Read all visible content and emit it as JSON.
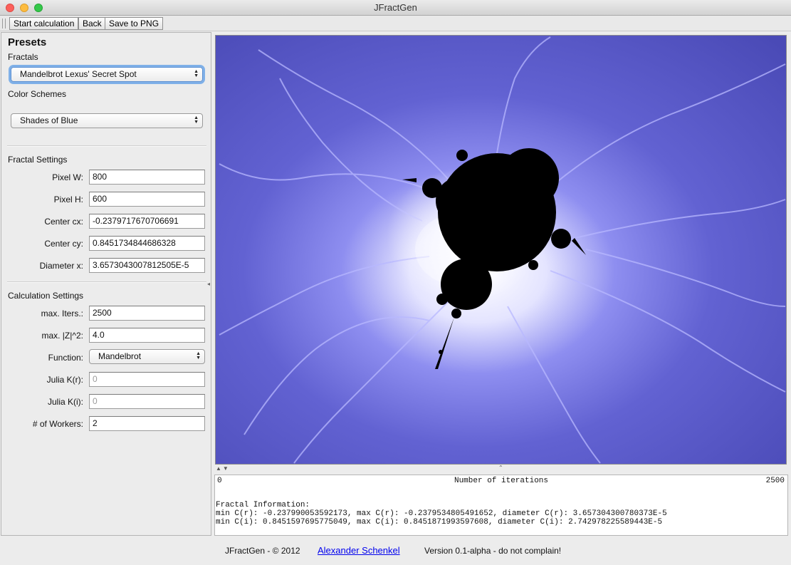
{
  "window": {
    "title": "JFractGen"
  },
  "toolbar": {
    "start_label": "Start calculation",
    "back_label": "Back",
    "save_label": "Save to PNG"
  },
  "presets": {
    "heading": "Presets",
    "fractals_label": "Fractals",
    "fractal_selected": "Mandelbrot Lexus' Secret Spot",
    "color_schemes_label": "Color Schemes",
    "color_scheme_selected": "Shades of Blue"
  },
  "fractal_settings": {
    "heading": "Fractal Settings",
    "pixel_w_label": "Pixel W:",
    "pixel_w": "800",
    "pixel_h_label": "Pixel H:",
    "pixel_h": "600",
    "center_cx_label": "Center cx:",
    "center_cx": "-0.2379717670706691",
    "center_cy_label": "Center cy:",
    "center_cy": "0.8451734844686328",
    "diameter_label": "Diameter x:",
    "diameter": "3.6573043007812505E-5"
  },
  "calc_settings": {
    "heading": "Calculation Settings",
    "max_iters_label": "max. Iters.:",
    "max_iters": "2500",
    "max_z_label": "max. |Z|^2:",
    "max_z": "4.0",
    "function_label": "Function:",
    "function": "Mandelbrot",
    "julia_kr_label": "Julia K(r):",
    "julia_kr": "0",
    "julia_ki_label": "Julia K(i):",
    "julia_ki": "0",
    "workers_label": "# of Workers:",
    "workers": "2"
  },
  "colorbar": {
    "min": "0",
    "title": "Number of iterations",
    "max": "2500"
  },
  "info": {
    "heading": "Fractal Information:",
    "line_r": "min C(r): -0.237990053592173, max C(r): -0.2379534805491652, diameter C(r): 3.657304300780373E-5",
    "line_i": "min C(i): 0.8451597695775049, max C(i): 0.8451871993597608, diameter C(i): 2.742978225589443E-5"
  },
  "footer": {
    "copyright": "JFractGen - © 2012",
    "author": "Alexander Schenkel",
    "version": "Version 0.1-alpha - do not complain!"
  },
  "colors": {
    "fractal_background": "#5454c4",
    "fractal_glow": "#ffffff",
    "fractal_set": "#000000",
    "focus_ring": "#7fb0e8"
  }
}
